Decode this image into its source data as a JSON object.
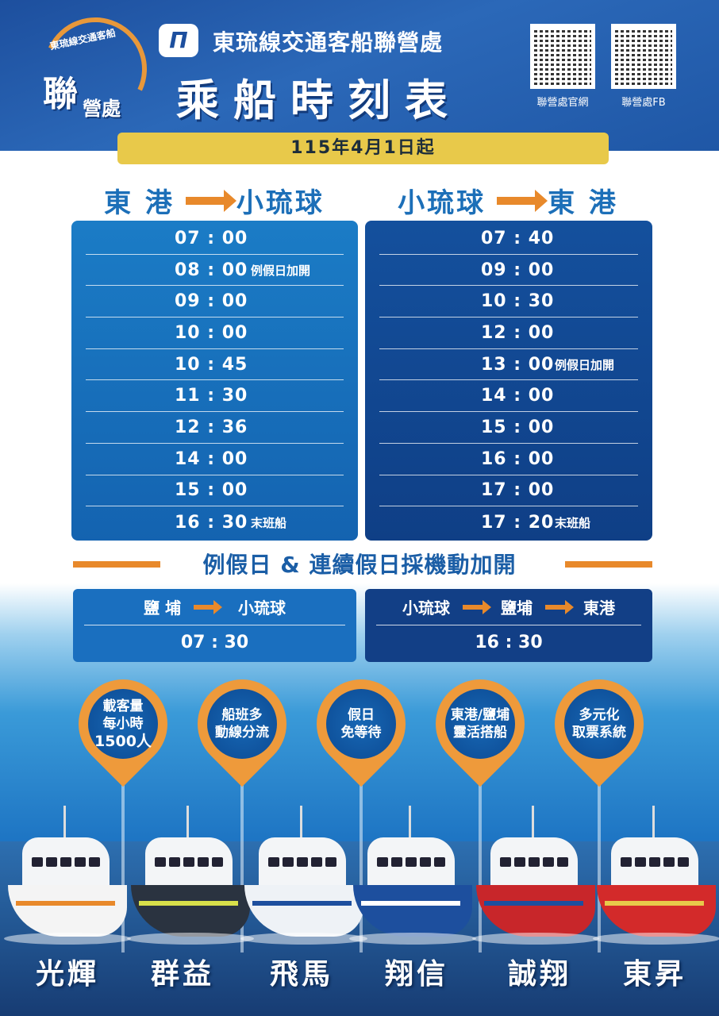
{
  "header": {
    "logo": {
      "top_text": "東琉線交通客船",
      "main": "聯",
      "sub": "營處"
    },
    "brand_mark": "Π",
    "organization": "東琉線交通客船聯營處",
    "title": "乘船時刻表",
    "qr_codes": [
      {
        "label": "聯營處官網"
      },
      {
        "label": "聯營處FB"
      }
    ]
  },
  "effective_date": "115年4月1日起",
  "schedules": [
    {
      "from": "東 港",
      "to": "小琉球",
      "departures": [
        {
          "time": "07 : 00",
          "note": ""
        },
        {
          "time": "08 : 00",
          "note": "例假日加開"
        },
        {
          "time": "09 : 00",
          "note": ""
        },
        {
          "time": "10 : 00",
          "note": ""
        },
        {
          "time": "10 : 45",
          "note": ""
        },
        {
          "time": "11 : 30",
          "note": ""
        },
        {
          "time": "12 : 36",
          "note": ""
        },
        {
          "time": "14 : 00",
          "note": ""
        },
        {
          "time": "15 : 00",
          "note": ""
        },
        {
          "time": "16 : 30",
          "note": "末班船"
        }
      ]
    },
    {
      "from": "小琉球",
      "to": "東 港",
      "departures": [
        {
          "time": "07 : 40",
          "note": ""
        },
        {
          "time": "09 : 00",
          "note": ""
        },
        {
          "time": "10 : 30",
          "note": ""
        },
        {
          "time": "12 : 00",
          "note": ""
        },
        {
          "time": "13 : 00",
          "note": "例假日加開"
        },
        {
          "time": "14 : 00",
          "note": ""
        },
        {
          "time": "15 : 00",
          "note": ""
        },
        {
          "time": "16 : 00",
          "note": ""
        },
        {
          "time": "17 : 00",
          "note": ""
        },
        {
          "time": "17 : 20",
          "note": "末班船"
        }
      ]
    }
  ],
  "holiday": {
    "title": "例假日 & 連續假日採機動加開",
    "routes": [
      {
        "stops": [
          "鹽 埔",
          "小琉球"
        ],
        "time": "07 : 30"
      },
      {
        "stops": [
          "小琉球",
          "鹽埔",
          "東港"
        ],
        "time": "16 : 30"
      }
    ]
  },
  "features": [
    {
      "lines": [
        "載客量",
        "每小時",
        "1500人"
      ]
    },
    {
      "lines": [
        "船班多",
        "動線分流"
      ]
    },
    {
      "lines": [
        "假日",
        "免等待"
      ]
    },
    {
      "lines": [
        "東港/鹽埔",
        "靈活搭船"
      ]
    },
    {
      "lines": [
        "多元化",
        "取票系統"
      ]
    }
  ],
  "boats": [
    {
      "name": "光輝",
      "hull": "#f4f4f4",
      "stripe": "#e8892b"
    },
    {
      "name": "群益",
      "hull": "#2a3340",
      "stripe": "#d8e04a"
    },
    {
      "name": "飛馬",
      "hull": "#eef2f6",
      "stripe": "#1d4f9e"
    },
    {
      "name": "翔信",
      "hull": "#1d4f9e",
      "stripe": "#ffffff"
    },
    {
      "name": "誠翔",
      "hull": "#c8262a",
      "stripe": "#1d4f9e"
    },
    {
      "name": "東昇",
      "hull": "#d32a2a",
      "stripe": "#e8c94a"
    }
  ],
  "colors": {
    "header_blue": "#1d4f9e",
    "accent_orange": "#e8892b",
    "date_yellow": "#e8c94a",
    "route_blue": "#1c6fb8"
  }
}
